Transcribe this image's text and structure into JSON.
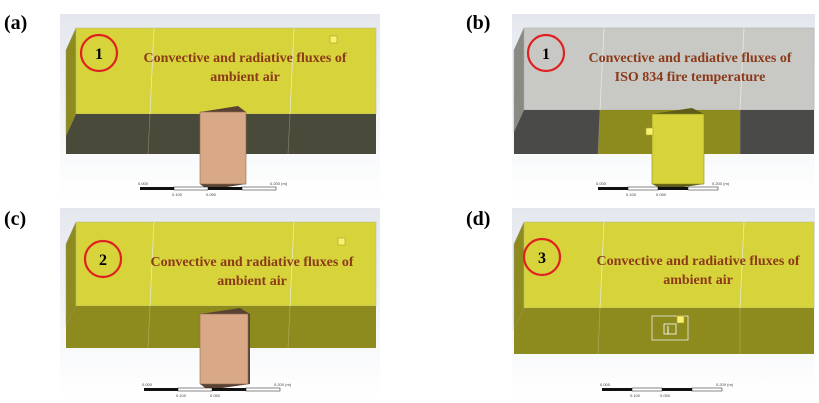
{
  "panels": [
    {
      "id": "a",
      "label": "(a)",
      "badge": "1",
      "caption_line1": "Convective and radiative  fluxes of",
      "caption_line2": "ambient air"
    },
    {
      "id": "b",
      "label": "(b)",
      "badge": "1",
      "caption_line1": "Convective and radiative  fluxes of",
      "caption_line2": "ISO 834 fire temperature"
    },
    {
      "id": "c",
      "label": "(c)",
      "badge": "2",
      "caption_line1": "Convective and radiative fluxes of",
      "caption_line2": "ambient air"
    },
    {
      "id": "d",
      "label": "(d)",
      "badge": "3",
      "caption_line1": "Convective and radiative  fluxes of",
      "caption_line2": "ambient air"
    }
  ],
  "colors": {
    "yellow_face": "#d6d43a",
    "yellow_dark": "#8e8b1e",
    "dark_face": "#4a4a3a",
    "gray_face": "#c8c8c4",
    "column": "#d9a987",
    "column_dark": "#5a4232",
    "circle": "#e02020",
    "caption": "#8b3a1a"
  },
  "scalebar": {
    "left": "0.000",
    "mid_top": "0.100",
    "mid_bottom": "0.050",
    "right": "0.200 (m)"
  }
}
